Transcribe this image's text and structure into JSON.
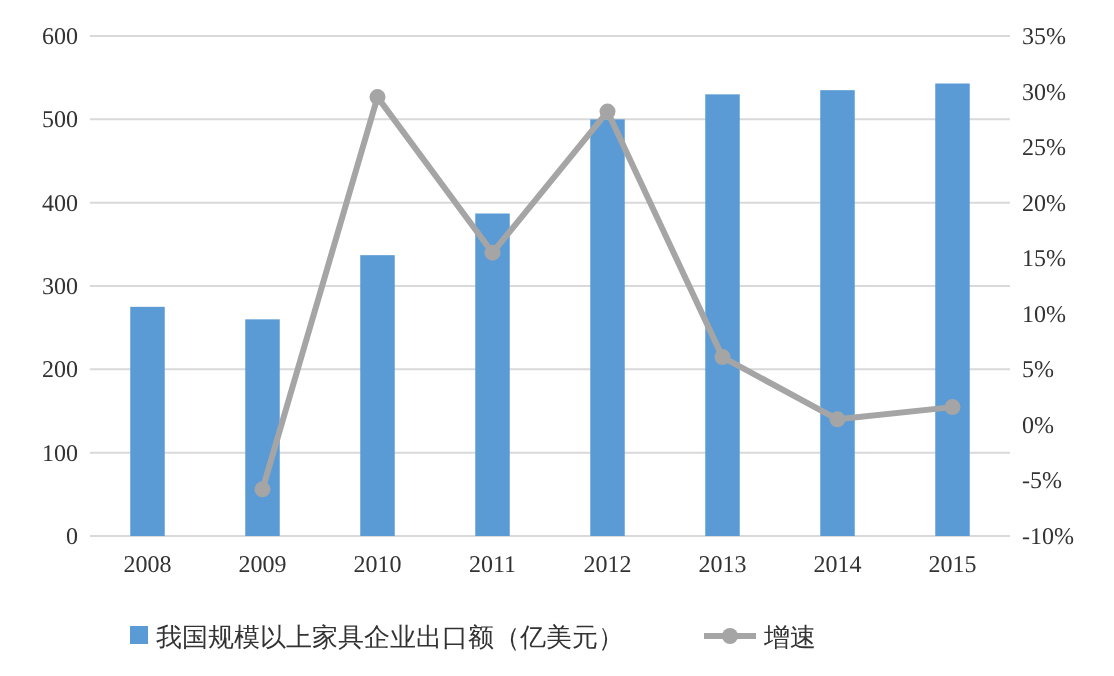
{
  "chart_data": {
    "type": "bar",
    "categories": [
      "2008",
      "2009",
      "2010",
      "2011",
      "2012",
      "2013",
      "2014",
      "2015"
    ],
    "series": [
      {
        "name": "我国规模以上家具企业出口额（亿美元）",
        "color": "#5b9bd5",
        "values": [
          275,
          260,
          337,
          387,
          500,
          530,
          535,
          543
        ]
      },
      {
        "name": "增速",
        "type": "line",
        "axis": "y2",
        "color": "#a5a5a5",
        "marker": "circle",
        "values": [
          null,
          -5.8,
          29.5,
          15.5,
          28.2,
          6.1,
          0.5,
          1.6
        ]
      }
    ],
    "ylim": [
      0,
      600
    ],
    "yticks": [
      0,
      100,
      200,
      300,
      400,
      500,
      600
    ],
    "y2lim": [
      -10,
      35
    ],
    "y2ticks": [
      {
        "value": -10,
        "label": "-10%"
      },
      {
        "value": -5,
        "label": "-5%"
      },
      {
        "value": 0,
        "label": "0%"
      },
      {
        "value": 5,
        "label": "5%"
      },
      {
        "value": 10,
        "label": "10%"
      },
      {
        "value": 15,
        "label": "15%"
      },
      {
        "value": 20,
        "label": "20%"
      },
      {
        "value": 25,
        "label": "25%"
      },
      {
        "value": 30,
        "label": "30%"
      },
      {
        "value": 35,
        "label": "35%"
      }
    ],
    "grid": "y",
    "legend": "bottom"
  }
}
